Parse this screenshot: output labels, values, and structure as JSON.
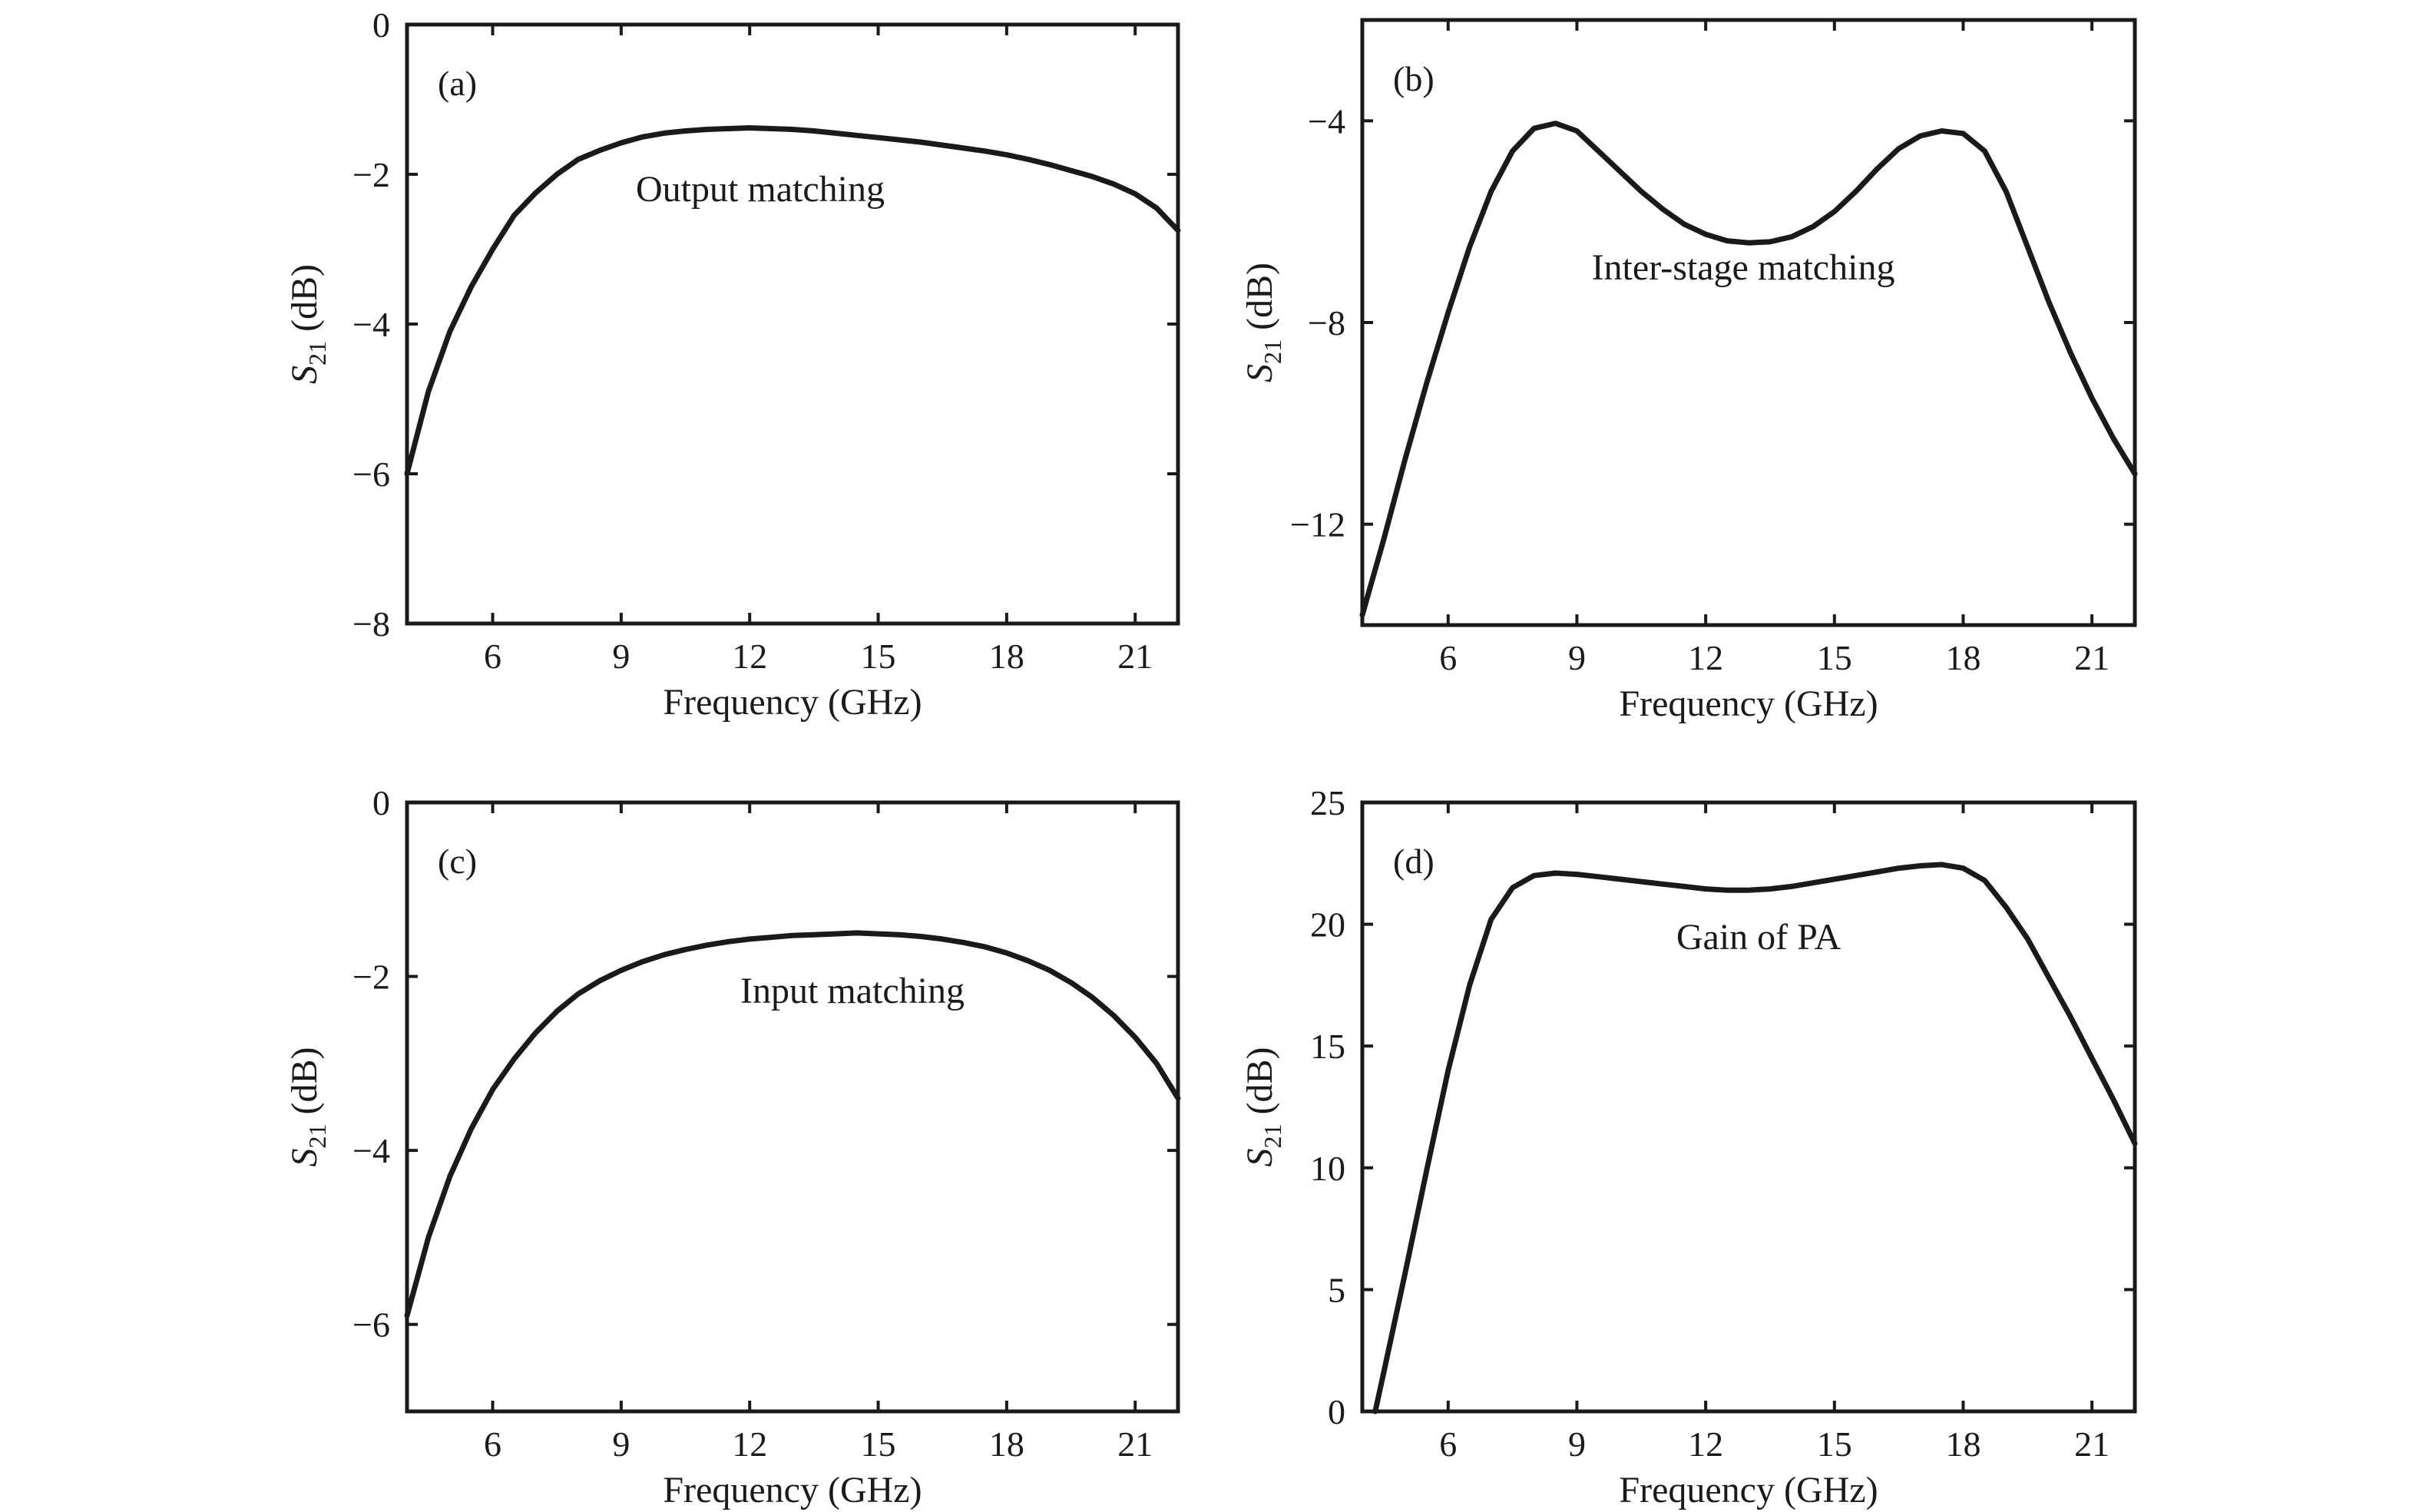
{
  "chart_data": [
    {
      "type": "line",
      "panel_label": "(a)",
      "annotation": "Output matching",
      "xlabel": "Frequency (GHz)",
      "ylabel_base": "S",
      "ylabel_sub": "21",
      "ylabel_unit": " (dB)",
      "xlim": [
        4,
        22
      ],
      "ylim": [
        -8,
        0
      ],
      "xticks": [
        6,
        9,
        12,
        15,
        18,
        21
      ],
      "xticklabels": [
        "6",
        "9",
        "12",
        "15",
        "18",
        "21"
      ],
      "yticks": [
        -8,
        -6,
        -4,
        -2,
        0
      ],
      "yticklabels": [
        "−8",
        "−6",
        "−4",
        "−2",
        "0"
      ],
      "series": [
        {
          "x": [
            4,
            4.5,
            5,
            5.5,
            6,
            6.5,
            7,
            7.5,
            8,
            8.5,
            9,
            9.5,
            10,
            10.5,
            11,
            11.5,
            12,
            12.5,
            13,
            13.5,
            14,
            14.5,
            15,
            15.5,
            16,
            16.5,
            17,
            17.5,
            18,
            18.5,
            19,
            19.5,
            20,
            20.5,
            21,
            21.5,
            22
          ],
          "y": [
            -6.0,
            -4.9,
            -4.1,
            -3.5,
            -3.0,
            -2.55,
            -2.25,
            -2.0,
            -1.8,
            -1.68,
            -1.58,
            -1.5,
            -1.45,
            -1.42,
            -1.4,
            -1.39,
            -1.38,
            -1.39,
            -1.4,
            -1.42,
            -1.45,
            -1.48,
            -1.51,
            -1.54,
            -1.57,
            -1.61,
            -1.65,
            -1.69,
            -1.74,
            -1.8,
            -1.87,
            -1.95,
            -2.03,
            -2.13,
            -2.26,
            -2.45,
            -2.75
          ]
        }
      ]
    },
    {
      "type": "line",
      "panel_label": "(b)",
      "annotation": "Inter-stage matching",
      "xlabel": "Frequency (GHz)",
      "ylabel_base": "S",
      "ylabel_sub": "21",
      "ylabel_unit": " (dB)",
      "xlim": [
        4,
        22
      ],
      "ylim": [
        -14,
        -2
      ],
      "xticks": [
        6,
        9,
        12,
        15,
        18,
        21
      ],
      "xticklabels": [
        "6",
        "9",
        "12",
        "15",
        "18",
        "21"
      ],
      "yticks": [
        -12,
        -8,
        -4
      ],
      "yticklabels": [
        "−12",
        "−8",
        "−4"
      ],
      "series": [
        {
          "x": [
            4,
            4.5,
            5,
            5.5,
            6,
            6.5,
            7,
            7.5,
            8,
            8.5,
            9,
            9.5,
            10,
            10.5,
            11,
            11.5,
            12,
            12.5,
            13,
            13.5,
            14,
            14.5,
            15,
            15.5,
            16,
            16.5,
            17,
            17.5,
            18,
            18.5,
            19,
            19.5,
            20,
            20.5,
            21,
            21.5,
            22
          ],
          "y": [
            -13.8,
            -12.3,
            -10.7,
            -9.2,
            -7.8,
            -6.5,
            -5.4,
            -4.6,
            -4.15,
            -4.05,
            -4.2,
            -4.6,
            -5.0,
            -5.4,
            -5.75,
            -6.05,
            -6.25,
            -6.38,
            -6.42,
            -6.4,
            -6.3,
            -6.1,
            -5.8,
            -5.4,
            -4.95,
            -4.55,
            -4.3,
            -4.2,
            -4.25,
            -4.6,
            -5.4,
            -6.5,
            -7.6,
            -8.6,
            -9.5,
            -10.3,
            -11.0
          ]
        }
      ]
    },
    {
      "type": "line",
      "panel_label": "(c)",
      "annotation": "Input matching",
      "xlabel": "Frequency (GHz)",
      "ylabel_base": "S",
      "ylabel_sub": "21",
      "ylabel_unit": " (dB)",
      "xlim": [
        4,
        22
      ],
      "ylim": [
        -7,
        0
      ],
      "xticks": [
        6,
        9,
        12,
        15,
        18,
        21
      ],
      "xticklabels": [
        "6",
        "9",
        "12",
        "15",
        "18",
        "21"
      ],
      "yticks": [
        -6,
        -4,
        -2,
        0
      ],
      "yticklabels": [
        "−6",
        "−4",
        "−2",
        "0"
      ],
      "series": [
        {
          "x": [
            4,
            4.5,
            5,
            5.5,
            6,
            6.5,
            7,
            7.5,
            8,
            8.5,
            9,
            9.5,
            10,
            10.5,
            11,
            11.5,
            12,
            12.5,
            13,
            13.5,
            14,
            14.5,
            15,
            15.5,
            16,
            16.5,
            17,
            17.5,
            18,
            18.5,
            19,
            19.5,
            20,
            20.5,
            21,
            21.5,
            22
          ],
          "y": [
            -5.9,
            -5.0,
            -4.3,
            -3.75,
            -3.3,
            -2.95,
            -2.65,
            -2.4,
            -2.2,
            -2.05,
            -1.93,
            -1.83,
            -1.75,
            -1.69,
            -1.64,
            -1.6,
            -1.57,
            -1.55,
            -1.53,
            -1.52,
            -1.51,
            -1.5,
            -1.51,
            -1.52,
            -1.54,
            -1.57,
            -1.61,
            -1.66,
            -1.73,
            -1.82,
            -1.93,
            -2.07,
            -2.24,
            -2.45,
            -2.7,
            -3.0,
            -3.4
          ]
        }
      ]
    },
    {
      "type": "line",
      "panel_label": "(d)",
      "annotation": "Gain of PA",
      "xlabel": "Frequency (GHz)",
      "ylabel_base": "S",
      "ylabel_sub": "21",
      "ylabel_unit": " (dB)",
      "xlim": [
        4,
        22
      ],
      "ylim": [
        0,
        25
      ],
      "xticks": [
        6,
        9,
        12,
        15,
        18,
        21
      ],
      "xticklabels": [
        "6",
        "9",
        "12",
        "15",
        "18",
        "21"
      ],
      "yticks": [
        0,
        5,
        10,
        15,
        20,
        25
      ],
      "yticklabels": [
        "0",
        "5",
        "10",
        "15",
        "20",
        "25"
      ],
      "series": [
        {
          "x": [
            4.3,
            4.5,
            5,
            5.5,
            6,
            6.5,
            7,
            7.5,
            8,
            8.5,
            9,
            9.5,
            10,
            10.5,
            11,
            11.5,
            12,
            12.5,
            13,
            13.5,
            14,
            14.5,
            15,
            15.5,
            16,
            16.5,
            17,
            17.5,
            18,
            18.5,
            19,
            19.5,
            20,
            20.5,
            21,
            21.5,
            22
          ],
          "y": [
            0,
            1.6,
            5.7,
            9.9,
            14.0,
            17.5,
            20.2,
            21.5,
            22.0,
            22.1,
            22.05,
            21.95,
            21.85,
            21.75,
            21.65,
            21.55,
            21.45,
            21.4,
            21.4,
            21.45,
            21.55,
            21.7,
            21.85,
            22.0,
            22.15,
            22.3,
            22.4,
            22.45,
            22.3,
            21.8,
            20.7,
            19.4,
            17.8,
            16.2,
            14.5,
            12.8,
            11.0
          ]
        }
      ]
    }
  ]
}
